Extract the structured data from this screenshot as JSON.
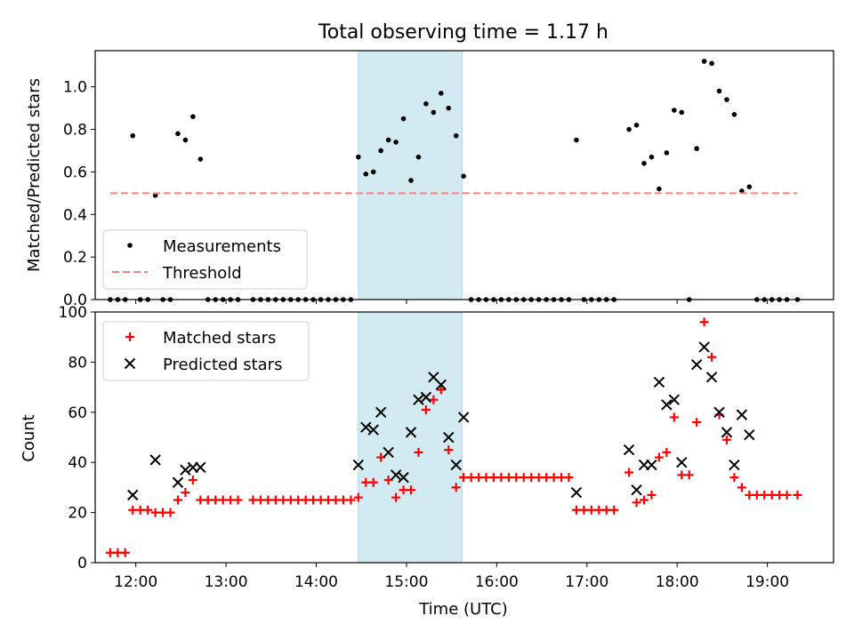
{
  "title": "Total observing time = 1.17 h",
  "xlabel": "Time (UTC)",
  "x_ticks": [
    "12:00",
    "13:00",
    "14:00",
    "15:00",
    "16:00",
    "17:00",
    "18:00",
    "19:00"
  ],
  "colors": {
    "measurement": "#000000",
    "threshold": "#ff7f7f",
    "matched": "#ff0000",
    "predicted": "#000000",
    "span": "#add8e6"
  },
  "chart_data": [
    {
      "type": "scatter",
      "ylabel": "Matched/Predicted stars",
      "xlim": [
        "11:33",
        "19:44"
      ],
      "ylim": [
        0,
        1.17
      ],
      "y_ticks": [
        "0.0",
        "0.2",
        "0.4",
        "0.6",
        "0.8",
        "1.0"
      ],
      "highlight_span": [
        "14:28",
        "15:37"
      ],
      "legend": {
        "placement": "lower left",
        "entries": [
          "Measurements",
          "Threshold"
        ]
      },
      "series": [
        {
          "name": "Measurements",
          "marker": "dot",
          "points": [
            [
              "11:43",
              0
            ],
            [
              "11:48",
              0
            ],
            [
              "11:53",
              0
            ],
            [
              "11:58",
              0.77
            ],
            [
              "12:03",
              0
            ],
            [
              "12:08",
              0
            ],
            [
              "12:13",
              0.49
            ],
            [
              "12:18",
              0
            ],
            [
              "12:23",
              0
            ],
            [
              "12:28",
              0.78
            ],
            [
              "12:33",
              0.75
            ],
            [
              "12:38",
              0.86
            ],
            [
              "12:43",
              0.66
            ],
            [
              "12:48",
              0
            ],
            [
              "12:53",
              0
            ],
            [
              "12:58",
              0
            ],
            [
              "13:03",
              0
            ],
            [
              "13:08",
              0
            ],
            [
              "13:18",
              0
            ],
            [
              "13:23",
              0
            ],
            [
              "13:28",
              0
            ],
            [
              "13:33",
              0
            ],
            [
              "13:38",
              0
            ],
            [
              "13:43",
              0
            ],
            [
              "13:48",
              0
            ],
            [
              "13:53",
              0
            ],
            [
              "13:58",
              0
            ],
            [
              "14:03",
              0
            ],
            [
              "14:08",
              0
            ],
            [
              "14:13",
              0
            ],
            [
              "14:18",
              0
            ],
            [
              "14:23",
              0
            ],
            [
              "14:28",
              0.67
            ],
            [
              "14:33",
              0.59
            ],
            [
              "14:38",
              0.6
            ],
            [
              "14:43",
              0.7
            ],
            [
              "14:48",
              0.75
            ],
            [
              "14:53",
              0.74
            ],
            [
              "14:58",
              0.85
            ],
            [
              "15:03",
              0.56
            ],
            [
              "15:08",
              0.67
            ],
            [
              "15:13",
              0.92
            ],
            [
              "15:18",
              0.88
            ],
            [
              "15:23",
              0.97
            ],
            [
              "15:28",
              0.9
            ],
            [
              "15:33",
              0.77
            ],
            [
              "15:38",
              0.58
            ],
            [
              "15:43",
              0
            ],
            [
              "15:48",
              0
            ],
            [
              "15:53",
              0
            ],
            [
              "15:58",
              0
            ],
            [
              "16:03",
              0
            ],
            [
              "16:08",
              0
            ],
            [
              "16:13",
              0
            ],
            [
              "16:18",
              0
            ],
            [
              "16:23",
              0
            ],
            [
              "16:28",
              0
            ],
            [
              "16:33",
              0
            ],
            [
              "16:38",
              0
            ],
            [
              "16:43",
              0
            ],
            [
              "16:48",
              0
            ],
            [
              "16:53",
              0.75
            ],
            [
              "16:58",
              0
            ],
            [
              "17:03",
              0
            ],
            [
              "17:08",
              0
            ],
            [
              "17:13",
              0
            ],
            [
              "17:18",
              0
            ],
            [
              "17:28",
              0.8
            ],
            [
              "17:33",
              0.82
            ],
            [
              "17:38",
              0.64
            ],
            [
              "17:43",
              0.67
            ],
            [
              "17:48",
              0.52
            ],
            [
              "17:53",
              0.69
            ],
            [
              "17:58",
              0.89
            ],
            [
              "18:03",
              0.88
            ],
            [
              "18:08",
              0
            ],
            [
              "18:13",
              0.71
            ],
            [
              "18:18",
              1.12
            ],
            [
              "18:23",
              1.11
            ],
            [
              "18:28",
              0.98
            ],
            [
              "18:33",
              0.94
            ],
            [
              "18:38",
              0.87
            ],
            [
              "18:43",
              0.51
            ],
            [
              "18:48",
              0.53
            ],
            [
              "18:53",
              0
            ],
            [
              "18:58",
              0
            ],
            [
              "19:03",
              0
            ],
            [
              "19:08",
              0
            ],
            [
              "19:13",
              0
            ],
            [
              "19:20",
              0
            ]
          ]
        },
        {
          "name": "Threshold",
          "line": "dashed",
          "points": [
            [
              "11:43",
              0.5
            ],
            [
              "19:20",
              0.5
            ]
          ]
        }
      ]
    },
    {
      "type": "scatter",
      "ylabel": "Count",
      "xlabel": "Time (UTC)",
      "xlim": [
        "11:33",
        "19:44"
      ],
      "ylim": [
        0,
        100
      ],
      "y_ticks": [
        "0",
        "20",
        "40",
        "60",
        "80",
        "100"
      ],
      "highlight_span": [
        "14:28",
        "15:37"
      ],
      "legend": {
        "placement": "upper left",
        "entries": [
          "Matched stars",
          "Predicted stars"
        ]
      },
      "series": [
        {
          "name": "Matched stars",
          "marker": "plus",
          "points": [
            [
              "11:43",
              4
            ],
            [
              "11:48",
              4
            ],
            [
              "11:53",
              4
            ],
            [
              "11:58",
              21
            ],
            [
              "12:03",
              21
            ],
            [
              "12:08",
              21
            ],
            [
              "12:13",
              20
            ],
            [
              "12:18",
              20
            ],
            [
              "12:23",
              20
            ],
            [
              "12:28",
              25
            ],
            [
              "12:33",
              28
            ],
            [
              "12:38",
              33
            ],
            [
              "12:43",
              25
            ],
            [
              "12:48",
              25
            ],
            [
              "12:53",
              25
            ],
            [
              "12:58",
              25
            ],
            [
              "13:03",
              25
            ],
            [
              "13:08",
              25
            ],
            [
              "13:18",
              25
            ],
            [
              "13:23",
              25
            ],
            [
              "13:28",
              25
            ],
            [
              "13:33",
              25
            ],
            [
              "13:38",
              25
            ],
            [
              "13:43",
              25
            ],
            [
              "13:48",
              25
            ],
            [
              "13:53",
              25
            ],
            [
              "13:58",
              25
            ],
            [
              "14:03",
              25
            ],
            [
              "14:08",
              25
            ],
            [
              "14:13",
              25
            ],
            [
              "14:18",
              25
            ],
            [
              "14:23",
              25
            ],
            [
              "14:28",
              26
            ],
            [
              "14:33",
              32
            ],
            [
              "14:38",
              32
            ],
            [
              "14:43",
              42
            ],
            [
              "14:48",
              33
            ],
            [
              "14:53",
              26
            ],
            [
              "14:58",
              29
            ],
            [
              "15:03",
              29
            ],
            [
              "15:08",
              44
            ],
            [
              "15:13",
              61
            ],
            [
              "15:18",
              65
            ],
            [
              "15:23",
              69
            ],
            [
              "15:28",
              45
            ],
            [
              "15:33",
              30
            ],
            [
              "15:38",
              34
            ],
            [
              "15:43",
              34
            ],
            [
              "15:48",
              34
            ],
            [
              "15:53",
              34
            ],
            [
              "15:58",
              34
            ],
            [
              "16:03",
              34
            ],
            [
              "16:08",
              34
            ],
            [
              "16:13",
              34
            ],
            [
              "16:18",
              34
            ],
            [
              "16:23",
              34
            ],
            [
              "16:28",
              34
            ],
            [
              "16:33",
              34
            ],
            [
              "16:38",
              34
            ],
            [
              "16:43",
              34
            ],
            [
              "16:48",
              34
            ],
            [
              "16:53",
              21
            ],
            [
              "16:58",
              21
            ],
            [
              "17:03",
              21
            ],
            [
              "17:08",
              21
            ],
            [
              "17:13",
              21
            ],
            [
              "17:18",
              21
            ],
            [
              "17:28",
              36
            ],
            [
              "17:33",
              24
            ],
            [
              "17:38",
              25
            ],
            [
              "17:43",
              27
            ],
            [
              "17:48",
              42
            ],
            [
              "17:53",
              44
            ],
            [
              "17:58",
              58
            ],
            [
              "18:03",
              35
            ],
            [
              "18:08",
              35
            ],
            [
              "18:13",
              56
            ],
            [
              "18:18",
              96
            ],
            [
              "18:23",
              82
            ],
            [
              "18:28",
              59
            ],
            [
              "18:33",
              49
            ],
            [
              "18:38",
              34
            ],
            [
              "18:43",
              30
            ],
            [
              "18:48",
              27
            ],
            [
              "18:53",
              27
            ],
            [
              "18:58",
              27
            ],
            [
              "19:03",
              27
            ],
            [
              "19:08",
              27
            ],
            [
              "19:13",
              27
            ],
            [
              "19:20",
              27
            ]
          ]
        },
        {
          "name": "Predicted stars",
          "marker": "cross",
          "points": [
            [
              "11:58",
              27
            ],
            [
              "12:13",
              41
            ],
            [
              "12:28",
              32
            ],
            [
              "12:33",
              37
            ],
            [
              "12:38",
              38
            ],
            [
              "12:43",
              38
            ],
            [
              "14:28",
              39
            ],
            [
              "14:33",
              54
            ],
            [
              "14:38",
              53
            ],
            [
              "14:43",
              60
            ],
            [
              "14:48",
              44
            ],
            [
              "14:53",
              35
            ],
            [
              "14:58",
              34
            ],
            [
              "15:03",
              52
            ],
            [
              "15:08",
              65
            ],
            [
              "15:13",
              66
            ],
            [
              "15:18",
              74
            ],
            [
              "15:23",
              71
            ],
            [
              "15:28",
              50
            ],
            [
              "15:33",
              39
            ],
            [
              "15:38",
              58
            ],
            [
              "16:53",
              28
            ],
            [
              "17:28",
              45
            ],
            [
              "17:33",
              29
            ],
            [
              "17:38",
              39
            ],
            [
              "17:43",
              39
            ],
            [
              "17:48",
              72
            ],
            [
              "17:53",
              63
            ],
            [
              "17:58",
              65
            ],
            [
              "18:03",
              40
            ],
            [
              "18:13",
              79
            ],
            [
              "18:18",
              86
            ],
            [
              "18:23",
              74
            ],
            [
              "18:28",
              60
            ],
            [
              "18:33",
              52
            ],
            [
              "18:38",
              39
            ],
            [
              "18:43",
              59
            ],
            [
              "18:48",
              51
            ]
          ]
        }
      ]
    }
  ]
}
